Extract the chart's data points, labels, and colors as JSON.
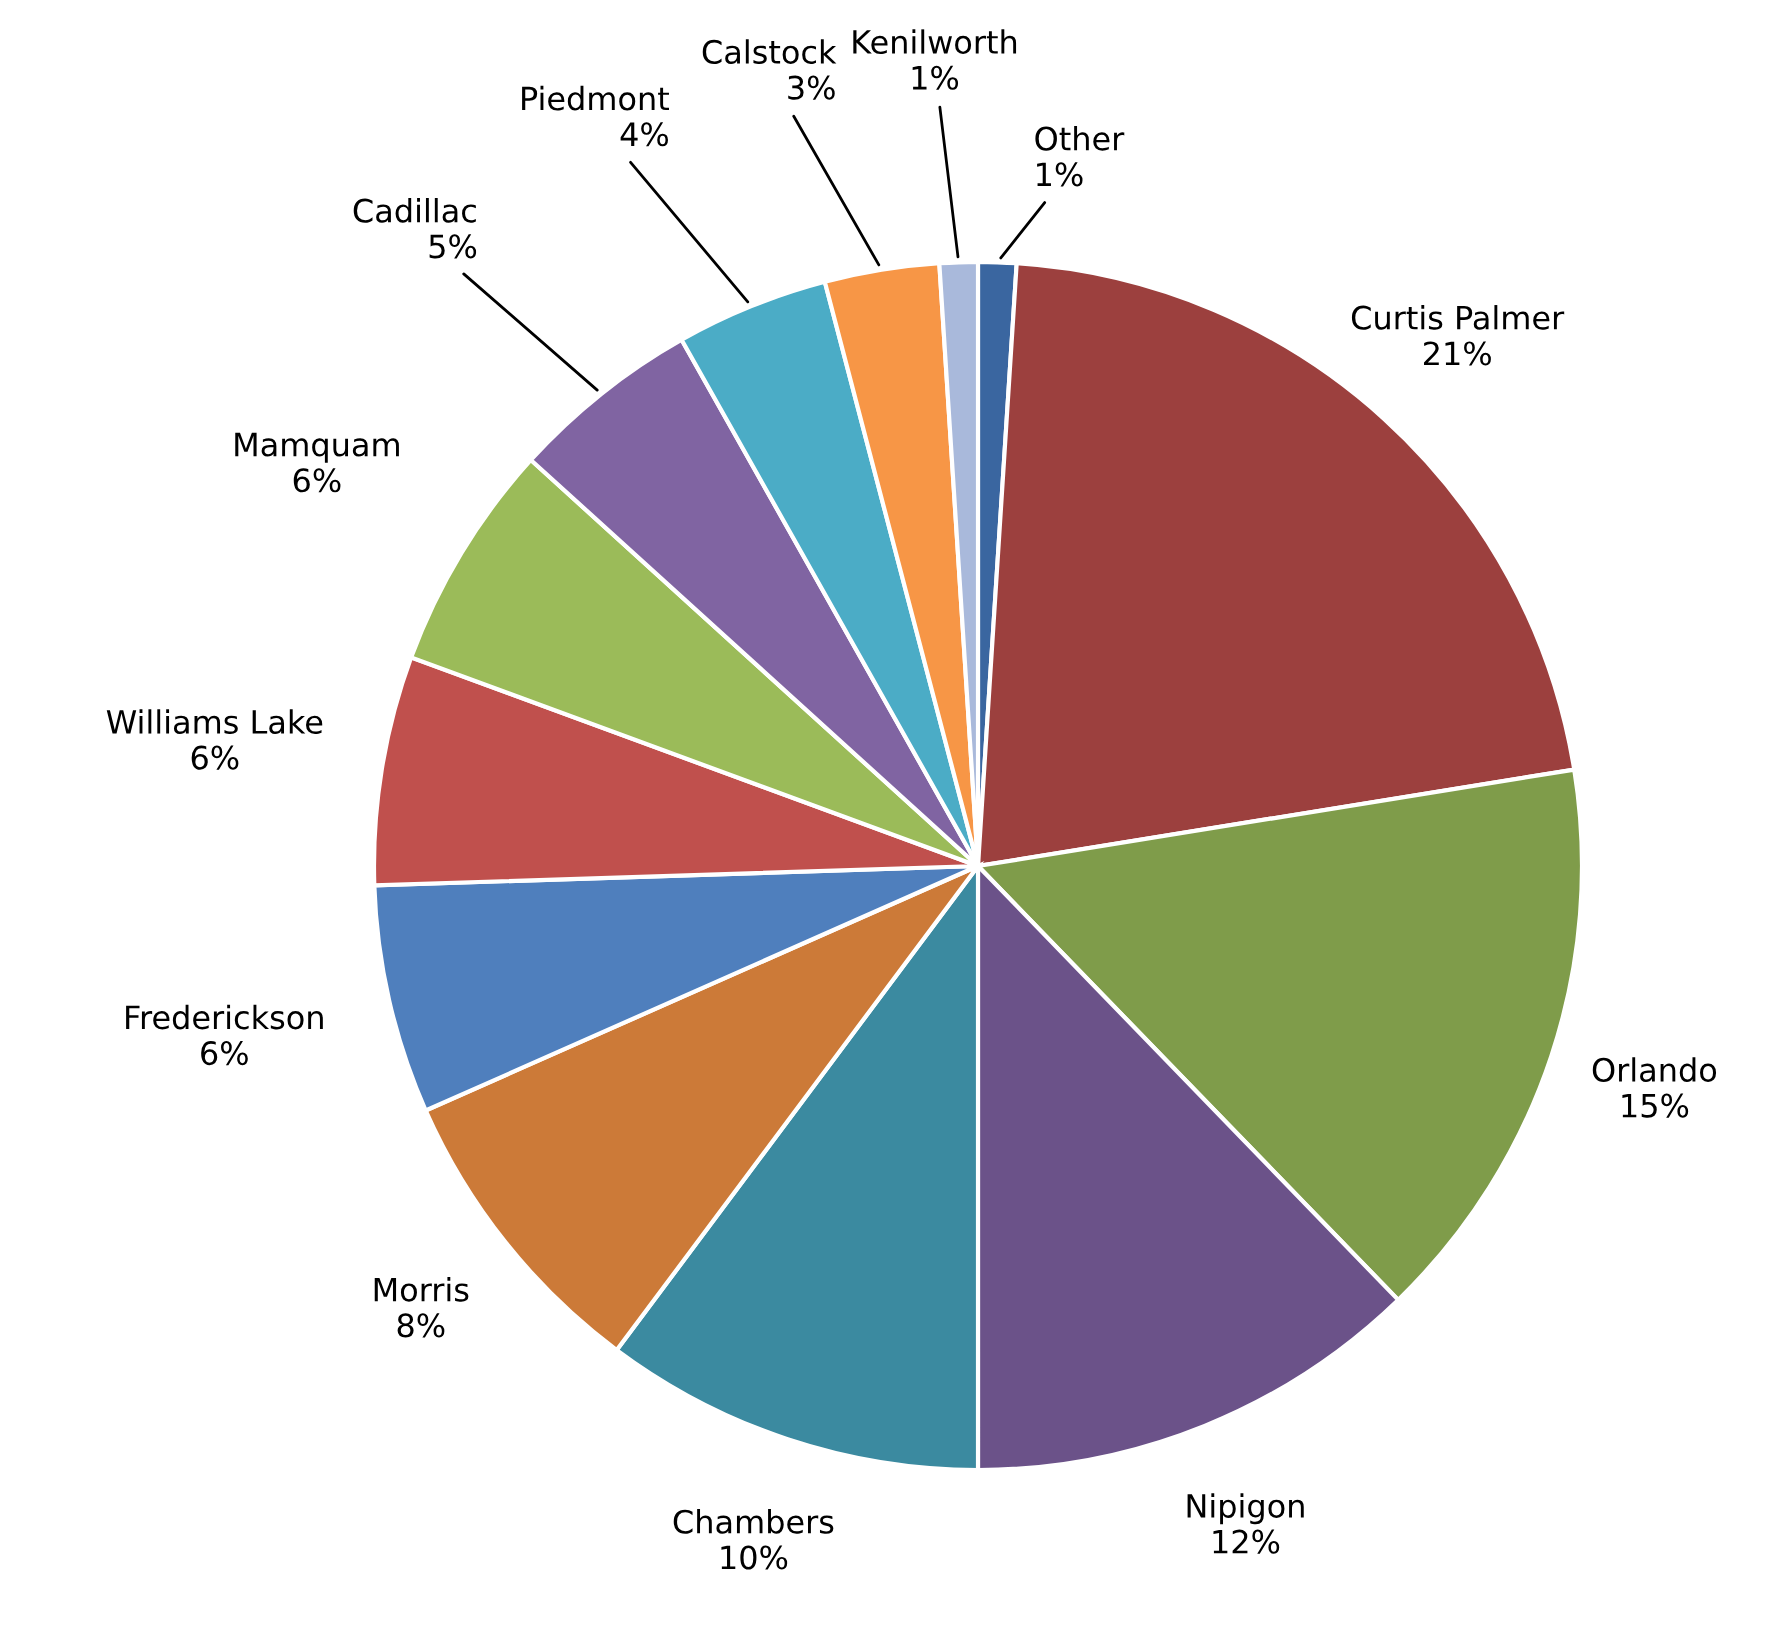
{
  "chart_data": {
    "type": "pie",
    "categories": [
      "Other",
      "Curtis Palmer",
      "Orlando",
      "Nipigon",
      "Chambers",
      "Morris",
      "Frederickson",
      "Williams Lake",
      "Mamquam",
      "Cadillac",
      "Piedmont",
      "Calstock",
      "Kenilworth"
    ],
    "values": [
      1,
      21,
      15,
      12,
      10,
      8,
      6,
      6,
      6,
      5,
      4,
      3,
      1
    ],
    "value_labels": [
      "1%",
      "21%",
      "15%",
      "12%",
      "10%",
      "8%",
      "6%",
      "6%",
      "6%",
      "5%",
      "4%",
      "3%",
      "1%"
    ],
    "colors": [
      "#3a66a0",
      "#9c403e",
      "#7f9c4a",
      "#6b5289",
      "#3b8aa0",
      "#cc7a38",
      "#4f7fbd",
      "#c0504d",
      "#9bbb59",
      "#8064a2",
      "#4bacc6",
      "#f79646",
      "#a9b9db"
    ],
    "legend": false
  }
}
